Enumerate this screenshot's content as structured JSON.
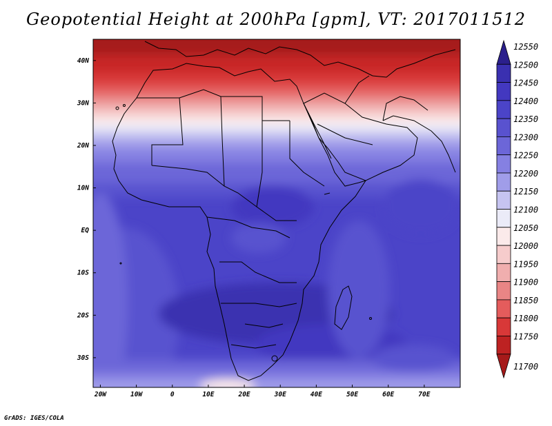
{
  "title": "Geopotential Height at 200hPa [gpm], VT: 2017011512",
  "credit": "GrADS: IGES/COLA",
  "map": {
    "lon_ticks": [
      "20W",
      "10W",
      "0",
      "10E",
      "20E",
      "30E",
      "40E",
      "50E",
      "60E",
      "70E"
    ],
    "lat_ticks": [
      "40N",
      "30N",
      "20N",
      "10N",
      "EQ",
      "10S",
      "20S",
      "30S"
    ],
    "lon_range": [
      -22,
      80
    ],
    "lat_range": [
      -37,
      45
    ]
  },
  "colorbar": {
    "levels": [
      "12550",
      "12500",
      "12450",
      "12400",
      "12350",
      "12300",
      "12250",
      "12200",
      "12150",
      "12100",
      "12050",
      "12000",
      "11950",
      "11900",
      "11850",
      "11800",
      "11750",
      "11700"
    ],
    "colors": [
      "#2b1f8c",
      "#3a30b0",
      "#4338c0",
      "#4b44c8",
      "#5952cf",
      "#6c66d8",
      "#8580e2",
      "#a09de9",
      "#c6c4f1",
      "#ebebf8",
      "#fbeaea",
      "#f6cccc",
      "#f0aeae",
      "#e98585",
      "#e45c5c",
      "#d83838",
      "#bd2222",
      "#a61a1a"
    ]
  },
  "chart_data": {
    "type": "heatmap",
    "title": "Geopotential Height at 200hPa [gpm], VT: 2017011512",
    "x_ticks": [
      "20W",
      "10W",
      "0",
      "10E",
      "20E",
      "30E",
      "40E",
      "50E",
      "60E",
      "70E"
    ],
    "y_ticks": [
      "40N",
      "30N",
      "20N",
      "10N",
      "EQ",
      "10S",
      "20S",
      "30S"
    ],
    "xlim": [
      -22,
      80
    ],
    "ylim": [
      -37,
      45
    ],
    "color_levels": [
      12550,
      12500,
      12450,
      12400,
      12350,
      12300,
      12250,
      12200,
      12150,
      12100,
      12050,
      12000,
      11950,
      11900,
      11850,
      11800,
      11750,
      11700
    ],
    "units": "gpm"
  }
}
